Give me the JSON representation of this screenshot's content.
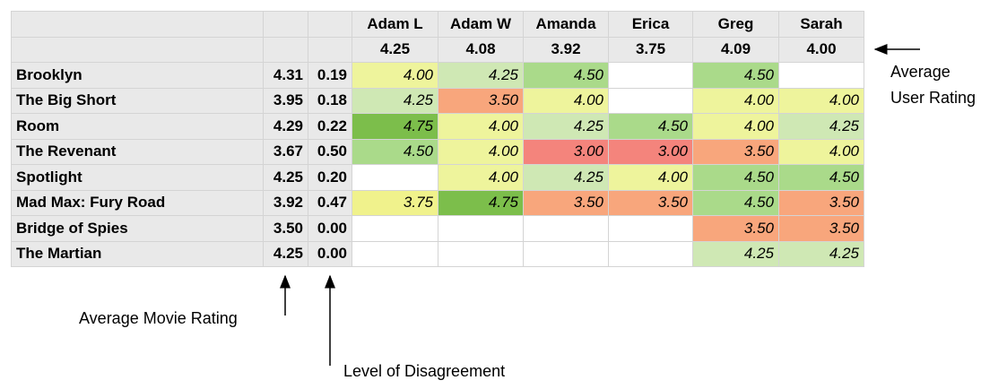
{
  "table": {
    "users": [
      "Adam L",
      "Adam W",
      "Amanda",
      "Erica",
      "Greg",
      "Sarah"
    ],
    "user_averages": [
      "4.25",
      "4.08",
      "3.92",
      "3.75",
      "4.09",
      "4.00"
    ],
    "rows": [
      {
        "movie": "Brooklyn",
        "average": "4.31",
        "disagreement": "0.19",
        "ratings": [
          "4.00",
          "4.25",
          "4.50",
          null,
          "4.50",
          null
        ]
      },
      {
        "movie": "The Big Short",
        "average": "3.95",
        "disagreement": "0.18",
        "ratings": [
          "4.25",
          "3.50",
          "4.00",
          null,
          "4.00",
          "4.00"
        ]
      },
      {
        "movie": "Room",
        "average": "4.29",
        "disagreement": "0.22",
        "ratings": [
          "4.75",
          "4.00",
          "4.25",
          "4.50",
          "4.00",
          "4.25"
        ]
      },
      {
        "movie": "The Revenant",
        "average": "3.67",
        "disagreement": "0.50",
        "ratings": [
          "4.50",
          "4.00",
          "3.00",
          "3.00",
          "3.50",
          "4.00"
        ]
      },
      {
        "movie": "Spotlight",
        "average": "4.25",
        "disagreement": "0.20",
        "ratings": [
          null,
          "4.00",
          "4.25",
          "4.00",
          "4.50",
          "4.50"
        ]
      },
      {
        "movie": "Mad Max: Fury Road",
        "average": "3.92",
        "disagreement": "0.47",
        "ratings": [
          "3.75",
          "4.75",
          "3.50",
          "3.50",
          "4.50",
          "3.50"
        ]
      },
      {
        "movie": "Bridge of Spies",
        "average": "3.50",
        "disagreement": "0.00",
        "ratings": [
          null,
          null,
          null,
          null,
          "3.50",
          "3.50"
        ]
      },
      {
        "movie": "The Martian",
        "average": "4.25",
        "disagreement": "0.00",
        "ratings": [
          null,
          null,
          null,
          null,
          "4.25",
          "4.25"
        ]
      }
    ]
  },
  "annotations": {
    "user_rating": [
      "Average",
      "User Rating"
    ],
    "movie_rating": "Average Movie Rating",
    "disagreement": "Level of Disagreement"
  }
}
